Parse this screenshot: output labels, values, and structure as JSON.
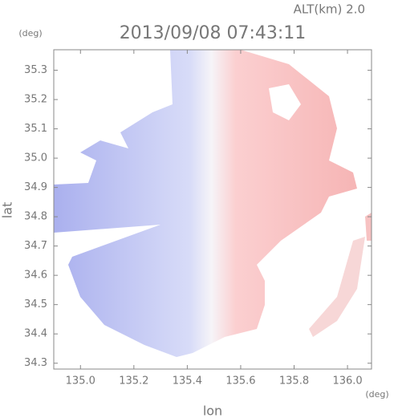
{
  "chart_data": {
    "type": "map",
    "title": "2013/09/08 07:43:11",
    "annotation": "ALT(km) 2.0",
    "x_label": "lon",
    "y_label": "lat",
    "x_unit": "(deg)",
    "y_unit": "(deg)",
    "xlim": [
      134.9,
      136.09
    ],
    "ylim": [
      34.28,
      35.37
    ],
    "xticks": [
      {
        "value": 135,
        "label": "135.0"
      },
      135.2,
      135.4,
      135.6,
      135.8,
      {
        "value": 136,
        "label": "136.0"
      }
    ],
    "yticks": [
      34.3,
      34.4,
      34.5,
      34.6,
      34.7,
      34.8,
      34.9,
      {
        "value": 35,
        "label": "35.0"
      },
      35.1,
      35.2,
      35.3
    ]
  }
}
